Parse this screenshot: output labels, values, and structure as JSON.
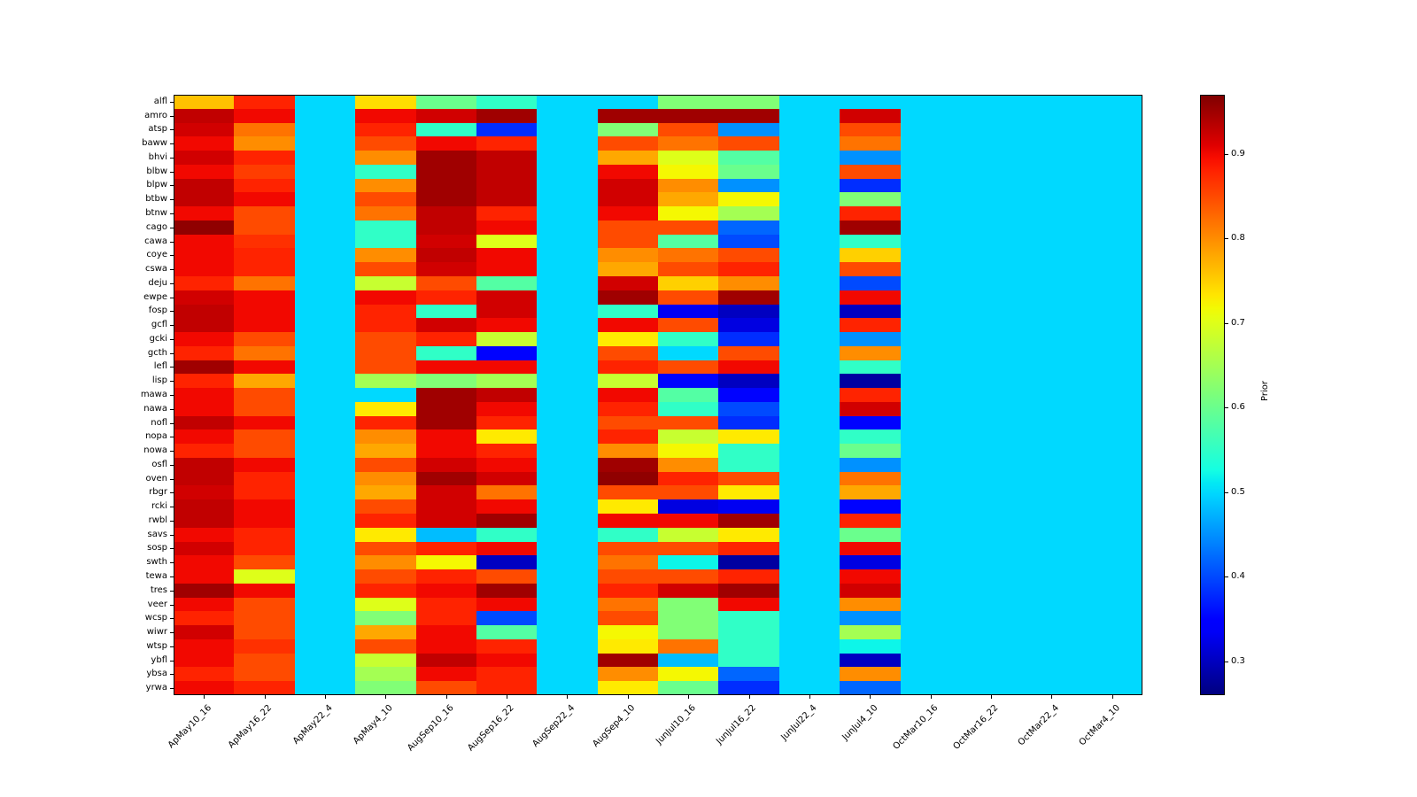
{
  "chart_data": {
    "type": "heatmap",
    "title": "",
    "colormap": "jet",
    "colorbar_label": "Prior",
    "vmin": 0.26,
    "vmax": 0.97,
    "colorbar_ticks": [
      0.9,
      0.8,
      0.7,
      0.6,
      0.5,
      0.4,
      0.3
    ],
    "x_categories": [
      "ApMay10_16",
      "ApMay16_22",
      "ApMay22_4",
      "ApMay4_10",
      "AugSep10_16",
      "AugSep16_22",
      "AugSep22_4",
      "AugSep4_10",
      "JunJul10_16",
      "JunJul16_22",
      "JunJul22_4",
      "JunJul4_10",
      "OctMar10_16",
      "OctMar16_22",
      "OctMar22_4",
      "OctMar4_10"
    ],
    "y_categories": [
      "alfl",
      "amro",
      "atsp",
      "baww",
      "bhvi",
      "blbw",
      "blpw",
      "btbw",
      "btnw",
      "cago",
      "cawa",
      "coye",
      "cswa",
      "deju",
      "ewpe",
      "fosp",
      "gcfl",
      "gcki",
      "gcth",
      "lefl",
      "lisp",
      "mawa",
      "nawa",
      "nofl",
      "nopa",
      "nowa",
      "osfl",
      "oven",
      "rbgr",
      "rcki",
      "rwbl",
      "savs",
      "sosp",
      "swth",
      "tewa",
      "tres",
      "veer",
      "wcsp",
      "wiwr",
      "wtsp",
      "ybfl",
      "ybsa",
      "yrwa"
    ],
    "values": [
      [
        0.76,
        0.88,
        0.5,
        0.74,
        0.6,
        0.55,
        0.5,
        0.5,
        0.62,
        0.62,
        0.5,
        0.5,
        0.5,
        0.5,
        0.5,
        0.5
      ],
      [
        0.93,
        0.9,
        0.5,
        0.9,
        0.92,
        0.95,
        0.5,
        0.95,
        0.95,
        0.95,
        0.5,
        0.92,
        0.5,
        0.5,
        0.5,
        0.5
      ],
      [
        0.92,
        0.82,
        0.5,
        0.88,
        0.55,
        0.38,
        0.5,
        0.62,
        0.85,
        0.45,
        0.5,
        0.85,
        0.5,
        0.5,
        0.5,
        0.5
      ],
      [
        0.9,
        0.8,
        0.5,
        0.85,
        0.9,
        0.88,
        0.5,
        0.85,
        0.82,
        0.85,
        0.5,
        0.82,
        0.5,
        0.5,
        0.5,
        0.5
      ],
      [
        0.92,
        0.88,
        0.5,
        0.8,
        0.95,
        0.93,
        0.5,
        0.78,
        0.7,
        0.58,
        0.5,
        0.45,
        0.5,
        0.5,
        0.5,
        0.5
      ],
      [
        0.9,
        0.86,
        0.5,
        0.55,
        0.95,
        0.93,
        0.5,
        0.9,
        0.72,
        0.6,
        0.5,
        0.85,
        0.5,
        0.5,
        0.5,
        0.5
      ],
      [
        0.93,
        0.88,
        0.5,
        0.8,
        0.95,
        0.93,
        0.5,
        0.92,
        0.8,
        0.45,
        0.5,
        0.38,
        0.5,
        0.5,
        0.5,
        0.5
      ],
      [
        0.93,
        0.9,
        0.5,
        0.85,
        0.95,
        0.93,
        0.5,
        0.92,
        0.78,
        0.72,
        0.5,
        0.62,
        0.5,
        0.5,
        0.5,
        0.5
      ],
      [
        0.9,
        0.85,
        0.5,
        0.82,
        0.93,
        0.88,
        0.5,
        0.9,
        0.72,
        0.65,
        0.5,
        0.88,
        0.5,
        0.5,
        0.5,
        0.5
      ],
      [
        0.96,
        0.85,
        0.5,
        0.55,
        0.93,
        0.9,
        0.5,
        0.85,
        0.85,
        0.42,
        0.5,
        0.95,
        0.5,
        0.5,
        0.5,
        0.5
      ],
      [
        0.9,
        0.87,
        0.5,
        0.55,
        0.92,
        0.7,
        0.5,
        0.85,
        0.58,
        0.4,
        0.5,
        0.55,
        0.5,
        0.5,
        0.5,
        0.5
      ],
      [
        0.9,
        0.88,
        0.5,
        0.8,
        0.93,
        0.9,
        0.5,
        0.8,
        0.82,
        0.85,
        0.5,
        0.75,
        0.5,
        0.5,
        0.5,
        0.5
      ],
      [
        0.9,
        0.88,
        0.5,
        0.85,
        0.92,
        0.9,
        0.5,
        0.78,
        0.85,
        0.88,
        0.5,
        0.85,
        0.5,
        0.5,
        0.5,
        0.5
      ],
      [
        0.88,
        0.82,
        0.5,
        0.68,
        0.85,
        0.58,
        0.5,
        0.92,
        0.75,
        0.8,
        0.5,
        0.4,
        0.5,
        0.5,
        0.5,
        0.5
      ],
      [
        0.92,
        0.9,
        0.5,
        0.9,
        0.88,
        0.92,
        0.5,
        0.95,
        0.85,
        0.95,
        0.5,
        0.9,
        0.5,
        0.5,
        0.5,
        0.5
      ],
      [
        0.93,
        0.9,
        0.5,
        0.88,
        0.55,
        0.92,
        0.5,
        0.55,
        0.33,
        0.3,
        0.5,
        0.3,
        0.5,
        0.5,
        0.5,
        0.5
      ],
      [
        0.93,
        0.9,
        0.5,
        0.88,
        0.92,
        0.9,
        0.5,
        0.9,
        0.85,
        0.32,
        0.5,
        0.88,
        0.5,
        0.5,
        0.5,
        0.5
      ],
      [
        0.9,
        0.85,
        0.5,
        0.85,
        0.88,
        0.68,
        0.5,
        0.73,
        0.55,
        0.38,
        0.5,
        0.45,
        0.5,
        0.5,
        0.5,
        0.5
      ],
      [
        0.88,
        0.82,
        0.5,
        0.85,
        0.55,
        0.35,
        0.5,
        0.85,
        0.5,
        0.85,
        0.5,
        0.8,
        0.5,
        0.5,
        0.5,
        0.5
      ],
      [
        0.95,
        0.9,
        0.5,
        0.85,
        0.9,
        0.9,
        0.5,
        0.88,
        0.85,
        0.9,
        0.5,
        0.55,
        0.5,
        0.5,
        0.5,
        0.5
      ],
      [
        0.88,
        0.78,
        0.5,
        0.65,
        0.62,
        0.65,
        0.5,
        0.68,
        0.35,
        0.3,
        0.5,
        0.28,
        0.5,
        0.5,
        0.5,
        0.5
      ],
      [
        0.9,
        0.85,
        0.5,
        0.5,
        0.95,
        0.93,
        0.5,
        0.9,
        0.58,
        0.35,
        0.5,
        0.88,
        0.5,
        0.5,
        0.5,
        0.5
      ],
      [
        0.9,
        0.85,
        0.5,
        0.73,
        0.95,
        0.9,
        0.5,
        0.88,
        0.55,
        0.4,
        0.5,
        0.92,
        0.5,
        0.5,
        0.5,
        0.5
      ],
      [
        0.93,
        0.9,
        0.5,
        0.88,
        0.95,
        0.88,
        0.5,
        0.85,
        0.85,
        0.38,
        0.5,
        0.35,
        0.5,
        0.5,
        0.5,
        0.5
      ],
      [
        0.9,
        0.85,
        0.5,
        0.8,
        0.9,
        0.73,
        0.5,
        0.88,
        0.68,
        0.73,
        0.5,
        0.55,
        0.5,
        0.5,
        0.5,
        0.5
      ],
      [
        0.88,
        0.85,
        0.5,
        0.78,
        0.9,
        0.88,
        0.5,
        0.8,
        0.72,
        0.55,
        0.5,
        0.6,
        0.5,
        0.5,
        0.5,
        0.5
      ],
      [
        0.93,
        0.9,
        0.5,
        0.85,
        0.92,
        0.9,
        0.5,
        0.95,
        0.8,
        0.55,
        0.5,
        0.45,
        0.5,
        0.5,
        0.5,
        0.5
      ],
      [
        0.93,
        0.88,
        0.5,
        0.8,
        0.95,
        0.92,
        0.5,
        0.96,
        0.88,
        0.85,
        0.5,
        0.82,
        0.5,
        0.5,
        0.5,
        0.5
      ],
      [
        0.92,
        0.88,
        0.5,
        0.78,
        0.92,
        0.82,
        0.5,
        0.85,
        0.85,
        0.73,
        0.5,
        0.78,
        0.5,
        0.5,
        0.5,
        0.5
      ],
      [
        0.93,
        0.9,
        0.5,
        0.85,
        0.92,
        0.9,
        0.5,
        0.73,
        0.32,
        0.33,
        0.5,
        0.35,
        0.5,
        0.5,
        0.5,
        0.5
      ],
      [
        0.93,
        0.9,
        0.5,
        0.88,
        0.92,
        0.95,
        0.5,
        0.9,
        0.9,
        0.95,
        0.5,
        0.88,
        0.5,
        0.5,
        0.5,
        0.5
      ],
      [
        0.9,
        0.88,
        0.5,
        0.73,
        0.48,
        0.55,
        0.5,
        0.55,
        0.68,
        0.73,
        0.5,
        0.6,
        0.5,
        0.5,
        0.5,
        0.5
      ],
      [
        0.92,
        0.88,
        0.5,
        0.85,
        0.88,
        0.9,
        0.5,
        0.85,
        0.85,
        0.88,
        0.5,
        0.9,
        0.5,
        0.5,
        0.5,
        0.5
      ],
      [
        0.9,
        0.85,
        0.5,
        0.8,
        0.72,
        0.3,
        0.5,
        0.82,
        0.52,
        0.28,
        0.5,
        0.32,
        0.5,
        0.5,
        0.5,
        0.5
      ],
      [
        0.9,
        0.7,
        0.5,
        0.85,
        0.88,
        0.85,
        0.5,
        0.85,
        0.85,
        0.88,
        0.5,
        0.9,
        0.5,
        0.5,
        0.5,
        0.5
      ],
      [
        0.95,
        0.9,
        0.5,
        0.88,
        0.9,
        0.95,
        0.5,
        0.88,
        0.92,
        0.95,
        0.5,
        0.92,
        0.5,
        0.5,
        0.5,
        0.5
      ],
      [
        0.9,
        0.85,
        0.5,
        0.7,
        0.88,
        0.9,
        0.5,
        0.82,
        0.62,
        0.9,
        0.5,
        0.8,
        0.5,
        0.5,
        0.5,
        0.5
      ],
      [
        0.88,
        0.85,
        0.5,
        0.62,
        0.88,
        0.4,
        0.5,
        0.85,
        0.62,
        0.55,
        0.5,
        0.45,
        0.5,
        0.5,
        0.5,
        0.5
      ],
      [
        0.92,
        0.85,
        0.5,
        0.78,
        0.9,
        0.58,
        0.5,
        0.72,
        0.62,
        0.55,
        0.5,
        0.65,
        0.5,
        0.5,
        0.5,
        0.5
      ],
      [
        0.9,
        0.87,
        0.5,
        0.85,
        0.9,
        0.88,
        0.5,
        0.73,
        0.82,
        0.55,
        0.5,
        0.52,
        0.5,
        0.5,
        0.5,
        0.5
      ],
      [
        0.9,
        0.85,
        0.5,
        0.68,
        0.93,
        0.9,
        0.5,
        0.95,
        0.48,
        0.55,
        0.5,
        0.3,
        0.5,
        0.5,
        0.5,
        0.5
      ],
      [
        0.88,
        0.85,
        0.5,
        0.65,
        0.9,
        0.88,
        0.5,
        0.8,
        0.72,
        0.42,
        0.5,
        0.8,
        0.5,
        0.5,
        0.5,
        0.5
      ],
      [
        0.9,
        0.88,
        0.5,
        0.62,
        0.85,
        0.88,
        0.5,
        0.73,
        0.6,
        0.38,
        0.5,
        0.42,
        0.5,
        0.5,
        0.5,
        0.5
      ]
    ]
  }
}
